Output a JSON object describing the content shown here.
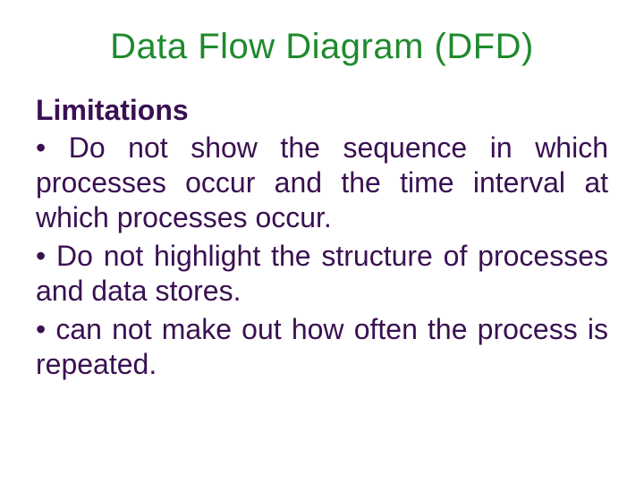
{
  "colors": {
    "title_color": "#1f8a2e",
    "subhead_color": "#3a1052",
    "body_color": "#3a1052",
    "background": "#ffffff"
  },
  "typography": {
    "title_fontsize": 40,
    "body_fontsize": 32,
    "font_family": "Arial"
  },
  "title": "Data Flow Diagram (DFD)",
  "subhead": "Limitations",
  "bullets": [
    "• Do not show the sequence in which processes occur and the time interval at which processes occur.",
    "• Do not highlight the structure of processes and data stores.",
    "• can not make out how often the process is repeated."
  ]
}
